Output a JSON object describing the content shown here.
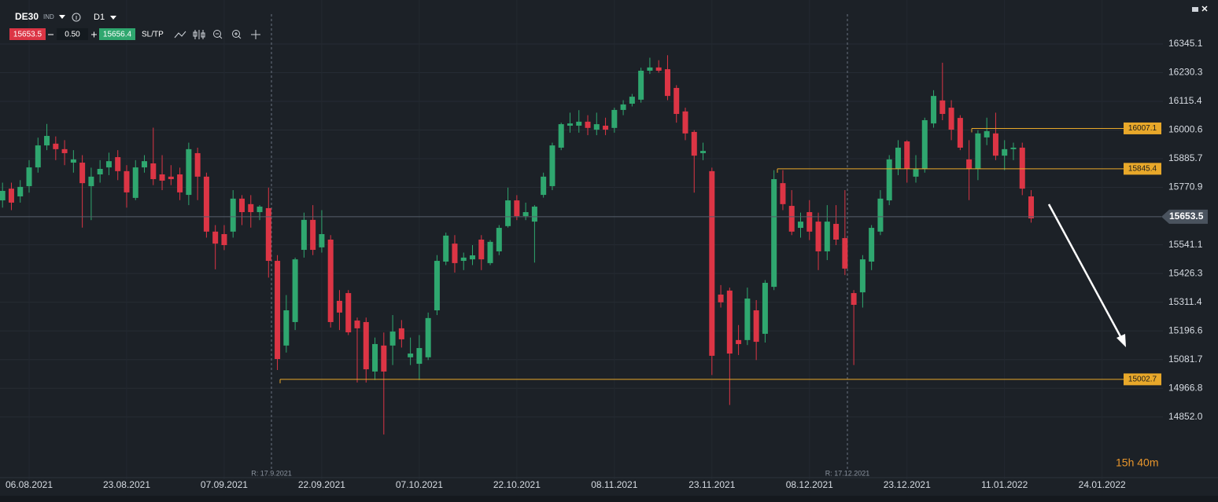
{
  "toolbar": {
    "symbol": "DE30",
    "market": "IND",
    "timeframe": "D1",
    "sell": 15653.5,
    "spread": "0.50",
    "buy": 15656.4,
    "sltp": "SL/TP"
  },
  "chart_data": {
    "type": "candlestick",
    "categories": [
      null,
      null,
      null,
      "06.08.2021",
      null,
      null,
      null,
      null,
      null,
      null,
      null,
      null,
      null,
      null,
      "23.08.2021",
      null,
      null,
      null,
      null,
      null,
      null,
      null,
      null,
      null,
      null,
      "07.09.2021",
      null,
      null,
      null,
      null,
      null,
      null,
      null,
      null,
      null,
      null,
      "22.09.2021",
      null,
      null,
      null,
      null,
      null,
      null,
      null,
      null,
      null,
      null,
      "07.10.2021",
      null,
      null,
      null,
      null,
      null,
      null,
      null,
      null,
      null,
      null,
      "22.10.2021",
      null,
      null,
      null,
      null,
      null,
      null,
      null,
      null,
      null,
      null,
      "08.11.2021",
      null,
      null,
      null,
      null,
      null,
      null,
      null,
      null,
      null,
      null,
      "23.11.2021",
      null,
      null,
      null,
      null,
      null,
      null,
      null,
      null,
      null,
      null,
      "08.12.2021",
      null,
      null,
      null,
      null,
      null,
      null,
      null,
      null,
      null,
      null,
      "23.12.2021",
      null,
      null,
      null,
      null,
      null,
      null,
      null,
      null,
      null,
      null,
      "11.01.2022",
      null,
      null,
      null,
      null,
      null,
      null,
      null,
      null,
      null,
      null,
      "24.01.2022"
    ],
    "open": [
      15719,
      15766,
      15735,
      15776,
      15851,
      15939,
      15946,
      15924,
      15870,
      15870,
      15776,
      15823,
      15851,
      15892,
      15836,
      15729,
      15851,
      15867,
      15823,
      15814,
      15823,
      15741,
      15908,
      15814,
      15594,
      15584,
      15594,
      15726,
      15704,
      15672,
      15688,
      15477,
      15138,
      15232,
      15521,
      15641,
      15531,
      15562,
      15317,
      15348,
      15238,
      15232,
      15034,
      15138,
      15138,
      15207,
      15091,
      15065,
      15091,
      15279,
      15474,
      15546,
      15477,
      15483,
      15562,
      15468,
      15515,
      15616,
      15719,
      15656,
      15634,
      15741,
      15776,
      15930,
      16018,
      16018,
      16034,
      16002,
      16018,
      16009,
      16081,
      16106,
      16122,
      16238,
      16251,
      16244,
      16169,
      16075,
      15993,
      15908,
      15836,
      15342,
      15358,
      15160,
      15160,
      15279,
      15185,
      15373,
      15788,
      15697,
      15609,
      15672,
      15634,
      15515,
      15625,
      15568,
      15348,
      15351,
      15474,
      15594,
      15719,
      15845,
      15955,
      15814,
      15845,
      16027,
      16119,
      16090,
      16049,
      15883,
      15845,
      15971,
      15987,
      15898,
      15924,
      15930,
      15735,
      null,
      null,
      null,
      null,
      null,
      null,
      null,
      null
    ],
    "high": [
      15790,
      15790,
      15800,
      15880,
      15970,
      16025,
      15975,
      15960,
      15920,
      15900,
      15850,
      15880,
      15910,
      15920,
      15860,
      15880,
      15900,
      16010,
      15900,
      15860,
      15850,
      15950,
      15930,
      15830,
      15620,
      15620,
      15760,
      15740,
      15740,
      15700,
      15770,
      15500,
      15340,
      15490,
      15670,
      15700,
      15680,
      15580,
      15360,
      15360,
      15250,
      15250,
      15170,
      15190,
      15260,
      15240,
      15170,
      15180,
      15270,
      15500,
      15590,
      15580,
      15510,
      15540,
      15580,
      15560,
      15620,
      15770,
      15740,
      15710,
      15700,
      15830,
      15950,
      16030,
      16070,
      16080,
      16060,
      16070,
      16050,
      16090,
      16120,
      16145,
      16250,
      16290,
      16280,
      16300,
      16180,
      16090,
      16000,
      15950,
      15850,
      15380,
      15370,
      15220,
      15370,
      15320,
      15400,
      15840,
      15840,
      15760,
      15670,
      15720,
      15670,
      15700,
      15700,
      15760,
      15360,
      15500,
      15620,
      15760,
      15900,
      15960,
      15960,
      15900,
      16050,
      16160,
      16270,
      16120,
      16060,
      15960,
      16000,
      16050,
      16070,
      15960,
      15950,
      15950,
      15760,
      null,
      null,
      null,
      null,
      null,
      null,
      null,
      null
    ],
    "low": [
      15690,
      15680,
      15710,
      15750,
      15830,
      15920,
      15880,
      15860,
      15830,
      15610,
      15640,
      15790,
      15820,
      15800,
      15690,
      15720,
      15830,
      15780,
      15760,
      15780,
      15720,
      15700,
      15720,
      15570,
      15443,
      15520,
      15570,
      15620,
      15610,
      15640,
      15410,
      15040,
      15110,
      15200,
      15490,
      15500,
      15510,
      15210,
      15200,
      15180,
      14990,
      14990,
      15000,
      14782,
      15060,
      15130,
      15060,
      15000,
      15080,
      15260,
      15460,
      15430,
      15440,
      15460,
      15440,
      15460,
      15500,
      15610,
      15640,
      15640,
      15470,
      15730,
      15760,
      15920,
      15990,
      15990,
      15980,
      15980,
      15980,
      15990,
      16060,
      16095,
      16110,
      16225,
      16230,
      16120,
      16030,
      15960,
      15750,
      15880,
      15020,
      15290,
      14900,
      15100,
      15140,
      15080,
      15150,
      15360,
      15680,
      15580,
      15570,
      15560,
      15440,
      15480,
      15540,
      15420,
      15060,
      15290,
      15440,
      15580,
      15700,
      15820,
      15790,
      15790,
      15830,
      16010,
      16040,
      15960,
      15920,
      15720,
      15800,
      15940,
      15880,
      15840,
      15880,
      15740,
      15630,
      null,
      null,
      null,
      null,
      null,
      null,
      null,
      null
    ],
    "close": [
      15757,
      15710,
      15773,
      15851,
      15939,
      15977,
      15924,
      15908,
      15883,
      15788,
      15814,
      15845,
      15876,
      15836,
      15751,
      15851,
      15876,
      15804,
      15798,
      15804,
      15751,
      15924,
      15814,
      15594,
      15546,
      15540,
      15726,
      15672,
      15672,
      15694,
      15477,
      15084,
      15279,
      15483,
      15641,
      15521,
      15584,
      15232,
      15270,
      15191,
      15207,
      15043,
      15144,
      15034,
      15194,
      15163,
      15106,
      15128,
      15248,
      15477,
      15578,
      15468,
      15490,
      15499,
      15483,
      15553,
      15609,
      15719,
      15656,
      15672,
      15694,
      15814,
      15939,
      16024,
      16027,
      16034,
      16009,
      16024,
      16002,
      16081,
      16103,
      16134,
      16238,
      16251,
      16238,
      16137,
      16065,
      15987,
      15898,
      15917,
      15097,
      15311,
      15106,
      15144,
      15326,
      15153,
      15389,
      15804,
      15704,
      15594,
      15634,
      15594,
      15515,
      15634,
      15562,
      15446,
      15301,
      15483,
      15609,
      15726,
      15883,
      15930,
      15845,
      15845,
      16040,
      16137,
      16065,
      16002,
      15930,
      15845,
      15987,
      15996,
      15898,
      15924,
      15930,
      15766,
      15647,
      null,
      null,
      null,
      null,
      null,
      null,
      null,
      null
    ],
    "up_color": "#2fa76f",
    "down_color": "#dc3545",
    "ylim": [
      14603,
      16521
    ],
    "yticks": [
      {
        "value": 14852,
        "label": "14852.0"
      },
      14966.8,
      15081.7,
      15196.6,
      15311.4,
      15426.3,
      15541.1,
      15770.9,
      15885.7,
      16000.6,
      16115.4,
      16230.3,
      16345.1
    ],
    "grid": true,
    "current_price": 15653.5,
    "levels": [
      16007.1,
      15845.4,
      15002.7
    ],
    "level_color": "#e8a82a",
    "markers": [
      "R: 17.9.2021",
      "R: 17.12.2021"
    ],
    "timer": "15h 40m"
  }
}
